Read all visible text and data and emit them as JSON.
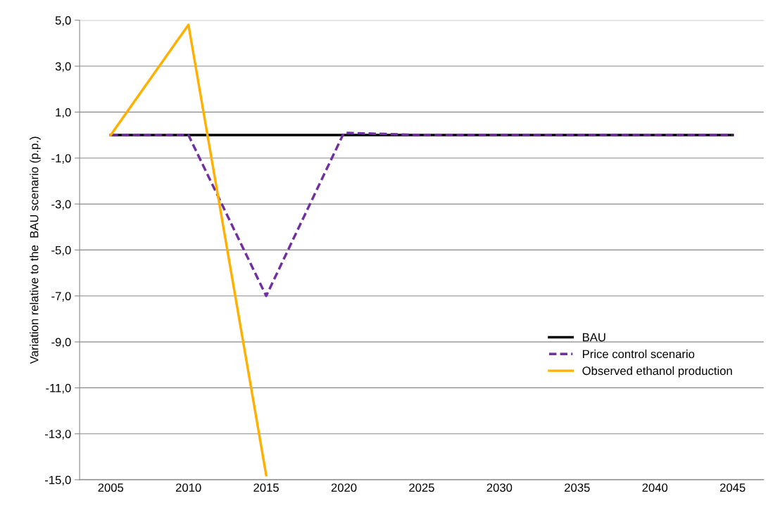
{
  "chart_data": {
    "type": "line",
    "ylabel": "Variation relative to the  BAU scenario (p.p.)",
    "categories": [
      "2005",
      "2010",
      "2015",
      "2020",
      "2025",
      "2030",
      "2035",
      "2040",
      "2045"
    ],
    "series": [
      {
        "name": "BAU",
        "color": "#000000",
        "line_style": "solid",
        "values": [
          0,
          0,
          0,
          0,
          0,
          0,
          0,
          0,
          0
        ]
      },
      {
        "name": "Price control scenario",
        "color": "#7030a0",
        "line_style": "dashed",
        "values": [
          0,
          0,
          -7.0,
          0.1,
          0,
          0,
          0,
          0,
          0
        ]
      },
      {
        "name": "Observed ethanol production",
        "color": "#ffb000",
        "line_style": "solid",
        "values": [
          0,
          4.8,
          -14.8,
          null,
          null,
          null,
          null,
          null,
          null
        ]
      }
    ],
    "ylim": [
      -15,
      5
    ],
    "yticks": [
      {
        "value": -15,
        "label": "-15,0"
      },
      {
        "value": -13,
        "label": "-13,0"
      },
      {
        "value": -11,
        "label": "-11,0"
      },
      {
        "value": -9,
        "label": "-9,0"
      },
      {
        "value": -7,
        "label": "-7,0"
      },
      {
        "value": -5,
        "label": "-5,0"
      },
      {
        "value": -3,
        "label": "-3,0"
      },
      {
        "value": -1,
        "label": "-1,0"
      },
      {
        "value": 1,
        "label": "1,0"
      },
      {
        "value": 3,
        "label": "3,0"
      },
      {
        "value": 5,
        "label": "5,0"
      }
    ],
    "grid": "y",
    "legend": "lower right",
    "marker": "none"
  }
}
